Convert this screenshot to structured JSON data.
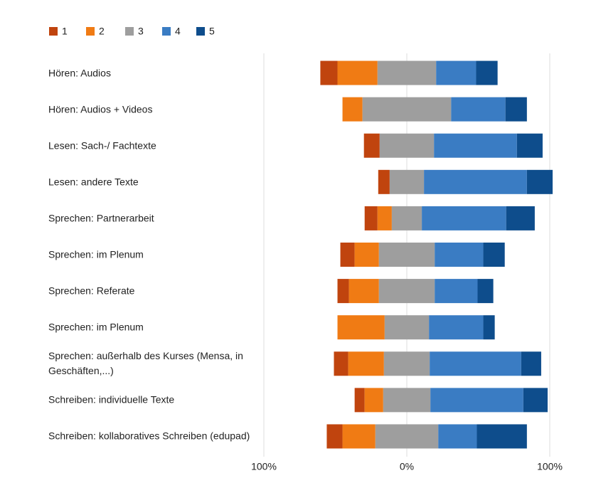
{
  "chart_data": {
    "type": "diverging_stacked_bar",
    "categories": [
      "Hören: Audios",
      "Hören: Audios + Videos",
      "Lesen: Sach-/ Fachtexte",
      "Lesen: andere Texte",
      "Sprechen: Partnerarbeit",
      "Sprechen: im Plenum",
      "Sprechen: Referate",
      "Sprechen: im Plenum",
      "Sprechen: außerhalb des Kurses (Mensa, in Geschäften,...)",
      "Schreiben: individuelle Texte",
      "Schreiben: kollaboratives Schreiben (edupad)"
    ],
    "series": [
      {
        "name": "1",
        "color": "#c0440e",
        "values": [
          12,
          0,
          11,
          8,
          9,
          10,
          8,
          0,
          10,
          7,
          11
        ]
      },
      {
        "name": "2",
        "color": "#f07b14",
        "values": [
          28,
          14,
          0,
          0,
          10,
          17,
          21,
          33,
          25,
          13,
          23
        ]
      },
      {
        "name": "3",
        "color": "#9e9e9e",
        "values": [
          41,
          62,
          38,
          24,
          21,
          39,
          39,
          31,
          32,
          33,
          44
        ]
      },
      {
        "name": "4",
        "color": "#3a7cc3",
        "values": [
          28,
          38,
          58,
          72,
          59,
          34,
          30,
          38,
          64,
          65,
          27
        ]
      },
      {
        "name": "5",
        "color": "#0e4d8c",
        "values": [
          15,
          15,
          18,
          18,
          20,
          15,
          11,
          8,
          14,
          17,
          35
        ]
      }
    ],
    "xlim": [
      -100,
      132
    ],
    "xticks": [
      {
        "value": -100,
        "label": "100%"
      },
      {
        "value": 0,
        "label": "0%"
      },
      {
        "value": 100,
        "label": "100%"
      }
    ],
    "grid": true,
    "legend": "top-left"
  }
}
